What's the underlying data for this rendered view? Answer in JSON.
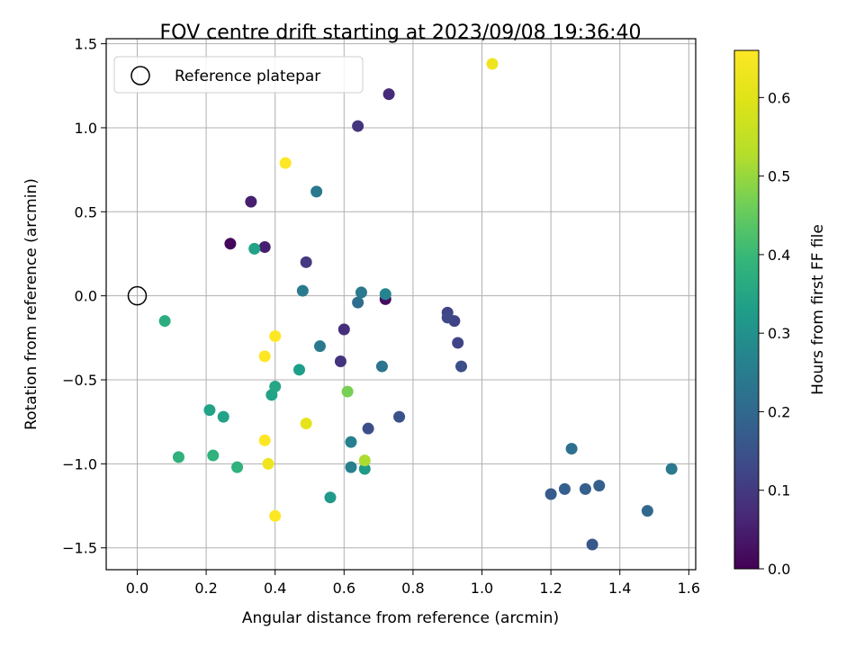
{
  "chart_data": {
    "type": "scatter",
    "title": "FOV centre drift starting at 2023/09/08 19:36:40",
    "xlabel": "Angular distance from reference (arcmin)",
    "ylabel": "Rotation from reference (arcmin)",
    "xlim": [
      -0.09,
      1.62
    ],
    "ylim": [
      -1.63,
      1.53
    ],
    "x_ticks": [
      0.0,
      0.2,
      0.4,
      0.6,
      0.8,
      1.0,
      1.2,
      1.4,
      1.6
    ],
    "x_tick_labels": [
      "0.0",
      "0.2",
      "0.4",
      "0.6",
      "0.8",
      "1.0",
      "1.2",
      "1.4",
      "1.6"
    ],
    "y_ticks": [
      -1.5,
      -1.0,
      -0.5,
      0.0,
      0.5,
      1.0,
      1.5
    ],
    "y_tick_labels": [
      "−1.5",
      "−1.0",
      "−0.5",
      "0.0",
      "0.5",
      "1.0",
      "1.5"
    ],
    "grid": true,
    "legend": {
      "placement": "top-left",
      "entries": [
        "Reference platepar"
      ]
    },
    "reference_point": {
      "x": 0.0,
      "y": 0.0
    },
    "colorbar": {
      "label": "Hours from first FF file",
      "colormap": "viridis",
      "range": [
        0.0,
        0.66
      ],
      "ticks": [
        0.0,
        0.1,
        0.2,
        0.3,
        0.4,
        0.5,
        0.6
      ],
      "tick_labels": [
        "0.0",
        "0.1",
        "0.2",
        "0.3",
        "0.4",
        "0.5",
        "0.6"
      ]
    },
    "points": [
      {
        "x": 0.27,
        "y": 0.31,
        "c": 0.01
      },
      {
        "x": 0.72,
        "y": -0.02,
        "c": 0.02
      },
      {
        "x": 0.33,
        "y": 0.56,
        "c": 0.05
      },
      {
        "x": 0.37,
        "y": 0.29,
        "c": 0.05
      },
      {
        "x": 0.73,
        "y": 1.2,
        "c": 0.07
      },
      {
        "x": 0.64,
        "y": 1.01,
        "c": 0.09
      },
      {
        "x": 0.6,
        "y": -0.2,
        "c": 0.08
      },
      {
        "x": 0.59,
        "y": -0.39,
        "c": 0.09
      },
      {
        "x": 0.49,
        "y": 0.2,
        "c": 0.1
      },
      {
        "x": 0.9,
        "y": -0.1,
        "c": 0.12
      },
      {
        "x": 0.92,
        "y": -0.15,
        "c": 0.12
      },
      {
        "x": 0.9,
        "y": -0.13,
        "c": 0.13
      },
      {
        "x": 0.93,
        "y": -0.28,
        "c": 0.12
      },
      {
        "x": 0.94,
        "y": -0.42,
        "c": 0.14
      },
      {
        "x": 0.67,
        "y": -0.79,
        "c": 0.14
      },
      {
        "x": 0.76,
        "y": -0.72,
        "c": 0.15
      },
      {
        "x": 1.32,
        "y": -1.48,
        "c": 0.16
      },
      {
        "x": 1.2,
        "y": -1.18,
        "c": 0.17
      },
      {
        "x": 1.24,
        "y": -1.15,
        "c": 0.18
      },
      {
        "x": 1.3,
        "y": -1.15,
        "c": 0.18
      },
      {
        "x": 1.34,
        "y": -1.13,
        "c": 0.18
      },
      {
        "x": 1.48,
        "y": -1.28,
        "c": 0.2
      },
      {
        "x": 1.26,
        "y": -0.91,
        "c": 0.22
      },
      {
        "x": 1.55,
        "y": -1.03,
        "c": 0.24
      },
      {
        "x": 0.64,
        "y": -0.04,
        "c": 0.21
      },
      {
        "x": 0.71,
        "y": -0.42,
        "c": 0.23
      },
      {
        "x": 0.52,
        "y": 0.62,
        "c": 0.24
      },
      {
        "x": 0.48,
        "y": 0.03,
        "c": 0.25
      },
      {
        "x": 0.65,
        "y": 0.02,
        "c": 0.24
      },
      {
        "x": 0.72,
        "y": 0.01,
        "c": 0.27
      },
      {
        "x": 0.53,
        "y": -0.3,
        "c": 0.24
      },
      {
        "x": 0.62,
        "y": -0.87,
        "c": 0.26
      },
      {
        "x": 0.62,
        "y": -1.02,
        "c": 0.26
      },
      {
        "x": 0.66,
        "y": -1.03,
        "c": 0.32
      },
      {
        "x": 0.56,
        "y": -1.2,
        "c": 0.32
      },
      {
        "x": 0.47,
        "y": -0.44,
        "c": 0.33
      },
      {
        "x": 0.34,
        "y": 0.28,
        "c": 0.34
      },
      {
        "x": 0.39,
        "y": -0.59,
        "c": 0.34
      },
      {
        "x": 0.4,
        "y": -0.54,
        "c": 0.35
      },
      {
        "x": 0.21,
        "y": -0.68,
        "c": 0.34
      },
      {
        "x": 0.25,
        "y": -0.72,
        "c": 0.34
      },
      {
        "x": 0.08,
        "y": -0.15,
        "c": 0.37
      },
      {
        "x": 0.12,
        "y": -0.96,
        "c": 0.38
      },
      {
        "x": 0.22,
        "y": -0.95,
        "c": 0.38
      },
      {
        "x": 0.29,
        "y": -1.02,
        "c": 0.38
      },
      {
        "x": 0.61,
        "y": -0.57,
        "c": 0.47
      },
      {
        "x": 0.66,
        "y": -0.98,
        "c": 0.52
      },
      {
        "x": 0.49,
        "y": -0.76,
        "c": 0.61
      },
      {
        "x": 1.03,
        "y": 1.38,
        "c": 0.63
      },
      {
        "x": 0.38,
        "y": -1.0,
        "c": 0.63
      },
      {
        "x": 0.43,
        "y": 0.79,
        "c": 0.66
      },
      {
        "x": 0.4,
        "y": -0.24,
        "c": 0.66
      },
      {
        "x": 0.37,
        "y": -0.36,
        "c": 0.66
      },
      {
        "x": 0.37,
        "y": -0.86,
        "c": 0.66
      },
      {
        "x": 0.4,
        "y": -1.31,
        "c": 0.66
      }
    ]
  }
}
